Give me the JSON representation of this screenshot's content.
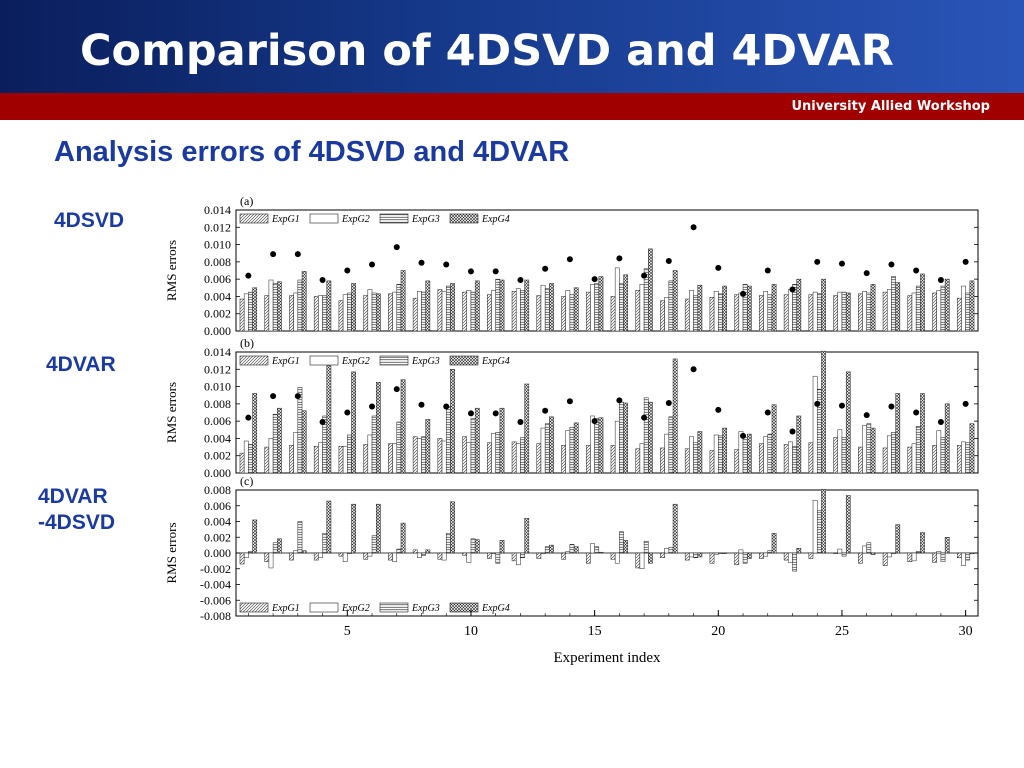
{
  "slide": {
    "title": "Comparison of 4DSVD and 4DVAR",
    "workshop": "University Allied Workshop",
    "section_title": "Analysis errors of 4DSVD and 4DVAR",
    "labels": {
      "panel_a": "4DSVD",
      "panel_b": "4DVAR",
      "panel_c_line1": "4DVAR",
      "panel_c_line2": "-4DSVD"
    }
  },
  "colors": {
    "title_bg": "#163a8c",
    "accent_red": "#a00000",
    "heading_blue": "#1a3aa0"
  },
  "chart_data": [
    {
      "type": "bar",
      "panel_label": "(a)",
      "ylabel": "RMS errors",
      "ylim": [
        0,
        0.014
      ],
      "yticks": [
        "0.000",
        "0.002",
        "0.004",
        "0.006",
        "0.008",
        "0.010",
        "0.012",
        "0.014"
      ],
      "xlim": [
        0.5,
        30.5
      ],
      "x": [
        1,
        2,
        3,
        4,
        5,
        6,
        7,
        8,
        9,
        10,
        11,
        12,
        13,
        14,
        15,
        16,
        17,
        18,
        19,
        20,
        21,
        22,
        23,
        24,
        25,
        26,
        27,
        28,
        29,
        30
      ],
      "legend": [
        "ExpG1",
        "ExpG2",
        "ExpG3",
        "ExpG4"
      ],
      "legend_position": "top-left",
      "series": [
        {
          "name": "ExpG1",
          "values": [
            0.0037,
            0.0041,
            0.0041,
            0.004,
            0.0035,
            0.0041,
            0.0043,
            0.0038,
            0.0048,
            0.0045,
            0.0042,
            0.0046,
            0.0041,
            0.004,
            0.0045,
            0.004,
            0.0047,
            0.0035,
            0.0037,
            0.0039,
            0.0042,
            0.0041,
            0.0042,
            0.0042,
            0.0041,
            0.0043,
            0.0045,
            0.0041,
            0.0044,
            0.0038
          ]
        },
        {
          "name": "ExpG2",
          "values": [
            0.0043,
            0.0059,
            0.0044,
            0.0041,
            0.0042,
            0.0048,
            0.0045,
            0.0046,
            0.0046,
            0.0047,
            0.0047,
            0.0049,
            0.0053,
            0.0047,
            0.0054,
            0.0073,
            0.0054,
            0.0039,
            0.0047,
            0.0046,
            0.0044,
            0.0046,
            0.0048,
            0.0045,
            0.0045,
            0.0046,
            0.0048,
            0.0044,
            0.0047,
            0.0052
          ]
        },
        {
          "name": "ExpG3",
          "values": [
            0.0045,
            0.0055,
            0.0059,
            0.0041,
            0.0044,
            0.0044,
            0.0054,
            0.0045,
            0.0052,
            0.0045,
            0.006,
            0.0047,
            0.0049,
            0.0042,
            0.0055,
            0.0055,
            0.0072,
            0.0058,
            0.0041,
            0.0043,
            0.0054,
            0.0042,
            0.0054,
            0.0043,
            0.0045,
            0.0044,
            0.0063,
            0.0052,
            0.0052,
            0.0044
          ]
        },
        {
          "name": "ExpG4",
          "values": [
            0.005,
            0.0057,
            0.0069,
            0.0058,
            0.0055,
            0.0043,
            0.007,
            0.0058,
            0.0055,
            0.0058,
            0.0059,
            0.0059,
            0.0055,
            0.005,
            0.0063,
            0.0065,
            0.0095,
            0.007,
            0.0053,
            0.0052,
            0.0052,
            0.0054,
            0.006,
            0.006,
            0.0044,
            0.0054,
            0.0056,
            0.0066,
            0.006,
            0.0058
          ]
        }
      ],
      "dots": [
        0.0064,
        0.0089,
        0.0089,
        0.0059,
        0.007,
        0.0077,
        0.0097,
        0.0079,
        0.0077,
        0.0069,
        0.0069,
        0.0059,
        0.0072,
        0.0083,
        0.006,
        0.0084,
        0.0064,
        0.0081,
        0.012,
        0.0073,
        0.0043,
        0.007,
        0.0048,
        0.008,
        0.0078,
        0.0067,
        0.0077,
        0.007,
        0.0059,
        0.008
      ]
    },
    {
      "type": "bar",
      "panel_label": "(b)",
      "ylabel": "RMS errors",
      "ylim": [
        0,
        0.014
      ],
      "yticks": [
        "0.000",
        "0.002",
        "0.004",
        "0.006",
        "0.008",
        "0.010",
        "0.012",
        "0.014"
      ],
      "xlim": [
        0.5,
        30.5
      ],
      "x": [
        1,
        2,
        3,
        4,
        5,
        6,
        7,
        8,
        9,
        10,
        11,
        12,
        13,
        14,
        15,
        16,
        17,
        18,
        19,
        20,
        21,
        22,
        23,
        24,
        25,
        26,
        27,
        28,
        29,
        30
      ],
      "legend": [
        "ExpG1",
        "ExpG2",
        "ExpG3",
        "ExpG4"
      ],
      "legend_position": "top-left",
      "series": [
        {
          "name": "ExpG1",
          "values": [
            0.0023,
            0.003,
            0.0032,
            0.0031,
            0.0031,
            0.0033,
            0.0034,
            0.0042,
            0.004,
            0.0042,
            0.0035,
            0.0036,
            0.0034,
            0.0032,
            0.0032,
            0.0032,
            0.0028,
            0.0029,
            0.0028,
            0.0026,
            0.0027,
            0.0034,
            0.0033,
            0.0035,
            0.0041,
            0.003,
            0.0029,
            0.003,
            0.0032,
            0.0032
          ]
        },
        {
          "name": "ExpG2",
          "values": [
            0.0037,
            0.004,
            0.0047,
            0.0035,
            0.0031,
            0.0044,
            0.0034,
            0.004,
            0.0037,
            0.0035,
            0.0046,
            0.0034,
            0.0052,
            0.0049,
            0.0066,
            0.006,
            0.0034,
            0.0045,
            0.0042,
            0.0044,
            0.0048,
            0.0042,
            0.0036,
            0.0112,
            0.005,
            0.0055,
            0.0043,
            0.0034,
            0.0049,
            0.0036
          ]
        },
        {
          "name": "ExpG3",
          "values": [
            0.0033,
            0.0068,
            0.0099,
            0.0066,
            0.0044,
            0.0066,
            0.0059,
            0.0042,
            0.0077,
            0.0063,
            0.0047,
            0.0041,
            0.0057,
            0.0053,
            0.0063,
            0.0082,
            0.0087,
            0.0065,
            0.0035,
            0.0043,
            0.0041,
            0.0045,
            0.0031,
            0.0097,
            0.0041,
            0.0057,
            0.0047,
            0.0054,
            0.0041,
            0.0035
          ]
        },
        {
          "name": "ExpG4",
          "values": [
            0.0092,
            0.0075,
            0.0072,
            0.0124,
            0.0117,
            0.0105,
            0.0108,
            0.0062,
            0.012,
            0.0075,
            0.0075,
            0.0103,
            0.0065,
            0.0058,
            0.0064,
            0.0081,
            0.0082,
            0.0132,
            0.0048,
            0.0052,
            0.0045,
            0.0079,
            0.0066,
            0.0141,
            0.0117,
            0.0052,
            0.0092,
            0.0092,
            0.008,
            0.0057
          ]
        }
      ],
      "dots": [
        0.0064,
        0.0089,
        0.0089,
        0.0059,
        0.007,
        0.0077,
        0.0097,
        0.0079,
        0.0077,
        0.0069,
        0.0069,
        0.0059,
        0.0072,
        0.0083,
        0.006,
        0.0084,
        0.0064,
        0.0081,
        0.012,
        0.0073,
        0.0043,
        0.007,
        0.0048,
        0.008,
        0.0078,
        0.0067,
        0.0077,
        0.007,
        0.0059,
        0.008
      ]
    },
    {
      "type": "bar",
      "panel_label": "(c)",
      "ylabel": "RMS errors",
      "xlabel": "Experiment index",
      "ylim": [
        -0.008,
        0.008
      ],
      "yticks": [
        "-0.008",
        "-0.006",
        "-0.004",
        "-0.002",
        "0.000",
        "0.002",
        "0.004",
        "0.006",
        "0.008"
      ],
      "xlim": [
        0.5,
        30.5
      ],
      "xticks": [
        5,
        10,
        15,
        20,
        25,
        30
      ],
      "legend": [
        "ExpG1",
        "ExpG2",
        "ExpG3",
        "ExpG4"
      ],
      "legend_position": "bottom-left",
      "series": [
        {
          "name": "ExpG1",
          "values": [
            -0.0014,
            -0.0011,
            -0.0009,
            -0.0009,
            -0.0004,
            -0.0008,
            -0.0009,
            0.0004,
            -0.0008,
            -0.0003,
            -0.0007,
            -0.001,
            -0.0007,
            -0.0008,
            -0.0013,
            -0.0008,
            -0.0019,
            -0.0006,
            -0.0009,
            -0.0013,
            -0.0015,
            -0.0007,
            -0.0009,
            -0.0007,
            0.0,
            -0.0013,
            -0.0016,
            -0.0011,
            -0.0012,
            -0.0006
          ]
        },
        {
          "name": "ExpG2",
          "values": [
            -0.0006,
            -0.0019,
            0.0003,
            -0.0006,
            -0.0011,
            -0.0004,
            -0.0011,
            -0.0006,
            -0.0009,
            -0.0012,
            -0.0001,
            -0.0015,
            -0.0001,
            0.0002,
            0.0012,
            -0.0013,
            -0.002,
            0.0006,
            -0.0005,
            -0.0002,
            0.0004,
            -0.0004,
            -0.0012,
            0.0067,
            0.0005,
            0.0009,
            -0.0005,
            -0.001,
            0.0002,
            -0.0016
          ]
        },
        {
          "name": "ExpG3",
          "values": [
            0.0002,
            0.0013,
            0.004,
            0.0025,
            0.0,
            0.0022,
            0.0005,
            -0.0003,
            0.0025,
            0.0018,
            -0.0013,
            -0.0006,
            0.0008,
            0.0011,
            0.0008,
            0.0027,
            0.0015,
            0.0007,
            -0.0006,
            0.0,
            -0.0013,
            0.0003,
            -0.0023,
            0.0054,
            -0.0004,
            0.0013,
            -0.0001,
            0.0002,
            -0.0011,
            -0.0009
          ]
        },
        {
          "name": "ExpG4",
          "values": [
            0.0042,
            0.0018,
            0.0003,
            0.0066,
            0.0062,
            0.0062,
            0.0038,
            0.0004,
            0.0065,
            0.0017,
            0.0016,
            0.0044,
            0.001,
            0.0008,
            0.0001,
            0.0016,
            -0.0013,
            0.0062,
            -0.0005,
            0.0,
            -0.0007,
            0.0025,
            0.0006,
            0.0081,
            0.0073,
            -0.0002,
            0.0036,
            0.0026,
            0.002,
            -0.0001
          ]
        }
      ]
    }
  ]
}
